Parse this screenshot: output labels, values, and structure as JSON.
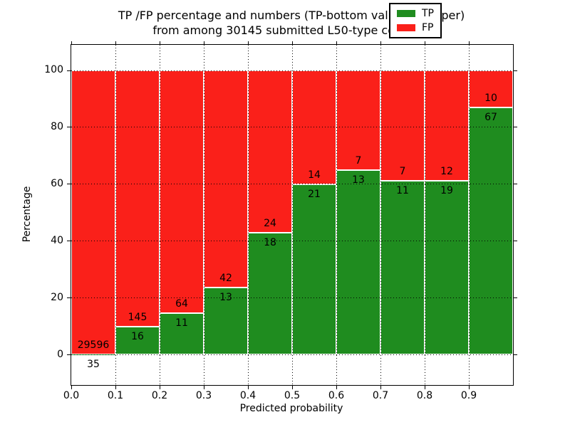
{
  "title": {
    "line1": "TP /FP percentage and numbers (TP-bottom value, FP-upper)",
    "line2": "from among 30145 submitted L50-type contacts"
  },
  "total_contacts": "30145",
  "chart_data": {
    "type": "bar",
    "stacked": true,
    "normalized_to_percent": true,
    "categories": [
      "0.0-0.1",
      "0.1-0.2",
      "0.2-0.3",
      "0.3-0.4",
      "0.4-0.5",
      "0.5-0.6",
      "0.6-0.7",
      "0.7-0.8",
      "0.8-0.9",
      "0.9-1.0"
    ],
    "series": [
      {
        "name": "TP",
        "color": "#1f8c1f",
        "values": [
          35,
          16,
          11,
          13,
          18,
          21,
          13,
          11,
          19,
          67
        ]
      },
      {
        "name": "FP",
        "color": "#fa201a",
        "values": [
          29596,
          145,
          64,
          42,
          24,
          14,
          7,
          7,
          12,
          10
        ]
      }
    ],
    "tp_percent": [
      0.12,
      9.94,
      14.67,
      23.64,
      42.86,
      60.0,
      65.0,
      61.11,
      61.29,
      87.01
    ],
    "title": "TP /FP percentage and numbers (TP-bottom value, FP-upper) from among 30145 submitted L50-type contacts",
    "xlabel": "Predicted probability",
    "ylabel": "Percentage",
    "x_ticks": [
      "0.0",
      "0.1",
      "0.2",
      "0.3",
      "0.4",
      "0.5",
      "0.6",
      "0.7",
      "0.8",
      "0.9"
    ],
    "y_ticks": [
      "0",
      "20",
      "40",
      "60",
      "80",
      "100"
    ],
    "xlim": [
      0.0,
      1.0
    ],
    "ylim": [
      -10,
      110
    ],
    "grid": "dotted black, both axes, drawn above bars",
    "bar_edge_color": "#ffffff",
    "legend": {
      "position": "upper right",
      "entries": [
        {
          "label": "TP",
          "color": "#1f8c1f"
        },
        {
          "label": "FP",
          "color": "#fa201a"
        }
      ]
    }
  }
}
